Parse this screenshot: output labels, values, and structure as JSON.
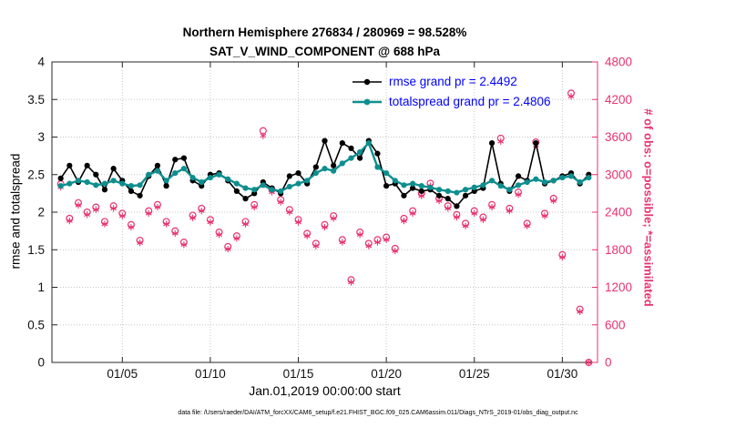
{
  "colors": {
    "rmse": "#000000",
    "totalspread": "#0e8e8e",
    "obs": "#e8336e",
    "legend_text": "#0000ff",
    "axis": "#262626",
    "grid": "#c8c8c8"
  },
  "chart_data": {
    "type": "line",
    "title_line1": "Northern Hemisphere 276834 / 280969 = 98.528%",
    "title_line2": "SAT_V_WIND_COMPONENT @ 688 hPa",
    "xlabel": "Jan.01,2019 00:00:00 start",
    "ylabel_left": "rmse and totalspread",
    "ylabel_right": "# of obs: o=possible; *=assimilated",
    "caption": "data file: /Users/raeder/DAI/ATM_forcXX/CAM6_setup/f.e21.FHIST_BGC.f09_025.CAM6assim.011/Diags_NTrS_2019-01/obs_diag_output.nc",
    "grid": true,
    "legend_position": "top-center-inside",
    "x_domain": [
      1,
      32
    ],
    "ylim_left": [
      0,
      4
    ],
    "ylim_right": [
      0,
      4800
    ],
    "yticks_left": [
      0,
      0.5,
      1,
      1.5,
      2,
      2.5,
      3,
      3.5,
      4
    ],
    "yticks_right": [
      0,
      600,
      1200,
      1800,
      2400,
      3000,
      3600,
      4200,
      4800
    ],
    "xtick_values": [
      5,
      10,
      15,
      20,
      25,
      30
    ],
    "xtick_labels": [
      "01/05",
      "01/10",
      "01/15",
      "01/20",
      "01/25",
      "01/30"
    ],
    "legend": [
      {
        "label": "rmse grand pr = 2.4492",
        "color": "#000000"
      },
      {
        "label": "totalspread grand pr = 2.4806",
        "color": "#0e8e8e"
      }
    ],
    "x": [
      1.5,
      2,
      2.5,
      3,
      3.5,
      4,
      4.5,
      5,
      5.5,
      6,
      6.5,
      7,
      7.5,
      8,
      8.5,
      9,
      9.5,
      10,
      10.5,
      11,
      11.5,
      12,
      12.5,
      13,
      13.5,
      14,
      14.5,
      15,
      15.5,
      16,
      16.5,
      17,
      17.5,
      18,
      18.5,
      19,
      19.5,
      20,
      20.5,
      21,
      21.5,
      22,
      22.5,
      23,
      23.5,
      24,
      24.5,
      25,
      25.5,
      26,
      26.5,
      27,
      27.5,
      28,
      28.5,
      29,
      29.5,
      30,
      30.5,
      31,
      31.5
    ],
    "series": [
      {
        "name": "rmse",
        "axis": "left",
        "color": "#000000",
        "marker": "filled-circle",
        "line": true,
        "values": [
          2.45,
          2.62,
          2.4,
          2.62,
          2.5,
          2.3,
          2.58,
          2.42,
          2.28,
          2.22,
          2.48,
          2.62,
          2.35,
          2.7,
          2.72,
          2.42,
          2.35,
          2.5,
          2.52,
          2.42,
          2.28,
          2.18,
          2.25,
          2.4,
          2.32,
          2.25,
          2.48,
          2.52,
          2.38,
          2.6,
          2.95,
          2.62,
          2.92,
          2.85,
          2.72,
          2.95,
          2.78,
          2.35,
          2.38,
          2.22,
          2.32,
          2.28,
          2.3,
          2.22,
          2.18,
          2.08,
          2.22,
          2.28,
          2.32,
          2.92,
          2.38,
          2.28,
          2.48,
          2.42,
          2.92,
          2.38,
          2.42,
          2.48,
          2.52,
          2.38,
          2.5
        ]
      },
      {
        "name": "totalspread",
        "axis": "left",
        "color": "#0e8e8e",
        "marker": "filled-circle",
        "line": true,
        "values": [
          2.35,
          2.38,
          2.42,
          2.4,
          2.36,
          2.38,
          2.42,
          2.38,
          2.35,
          2.36,
          2.5,
          2.55,
          2.42,
          2.52,
          2.58,
          2.46,
          2.4,
          2.46,
          2.5,
          2.44,
          2.38,
          2.32,
          2.3,
          2.36,
          2.3,
          2.28,
          2.34,
          2.38,
          2.42,
          2.52,
          2.58,
          2.55,
          2.65,
          2.72,
          2.8,
          2.92,
          2.6,
          2.52,
          2.42,
          2.36,
          2.38,
          2.35,
          2.33,
          2.3,
          2.28,
          2.26,
          2.3,
          2.33,
          2.36,
          2.42,
          2.35,
          2.3,
          2.36,
          2.4,
          2.44,
          2.4,
          2.42,
          2.46,
          2.48,
          2.4,
          2.46
        ]
      },
      {
        "name": "possible",
        "axis": "right",
        "color": "#e8336e",
        "marker": "open-circle",
        "line": false,
        "values": [
          2850,
          2300,
          2550,
          2400,
          2480,
          2250,
          2500,
          2380,
          2200,
          1950,
          2420,
          2520,
          2250,
          2100,
          1920,
          2350,
          2460,
          2280,
          2080,
          1850,
          2020,
          2250,
          2520,
          3700,
          2760,
          2600,
          2440,
          2280,
          2060,
          1900,
          2200,
          2340,
          1960,
          1320,
          2080,
          1900,
          1960,
          2000,
          1820,
          2300,
          2420,
          2700,
          2860,
          2620,
          2500,
          2360,
          2220,
          2420,
          2320,
          2520,
          3580,
          2460,
          2720,
          2220,
          3520,
          2380,
          2620,
          1720,
          4300,
          850,
          0
        ]
      },
      {
        "name": "assimilated",
        "axis": "right",
        "color": "#e8336e",
        "marker": "asterisk",
        "line": false,
        "values": [
          2800,
          2260,
          2510,
          2360,
          2440,
          2210,
          2460,
          2340,
          2160,
          1910,
          2380,
          2480,
          2210,
          2060,
          1880,
          2310,
          2420,
          2240,
          2040,
          1810,
          1980,
          2210,
          2480,
          3620,
          2720,
          2560,
          2400,
          2240,
          2020,
          1860,
          2160,
          2300,
          1920,
          1280,
          2040,
          1860,
          1920,
          1960,
          1780,
          2260,
          2380,
          2660,
          2820,
          2580,
          2460,
          2320,
          2180,
          2380,
          2280,
          2480,
          3530,
          2420,
          2680,
          2180,
          3470,
          2340,
          2580,
          1680,
          4250,
          810,
          0
        ]
      }
    ]
  }
}
